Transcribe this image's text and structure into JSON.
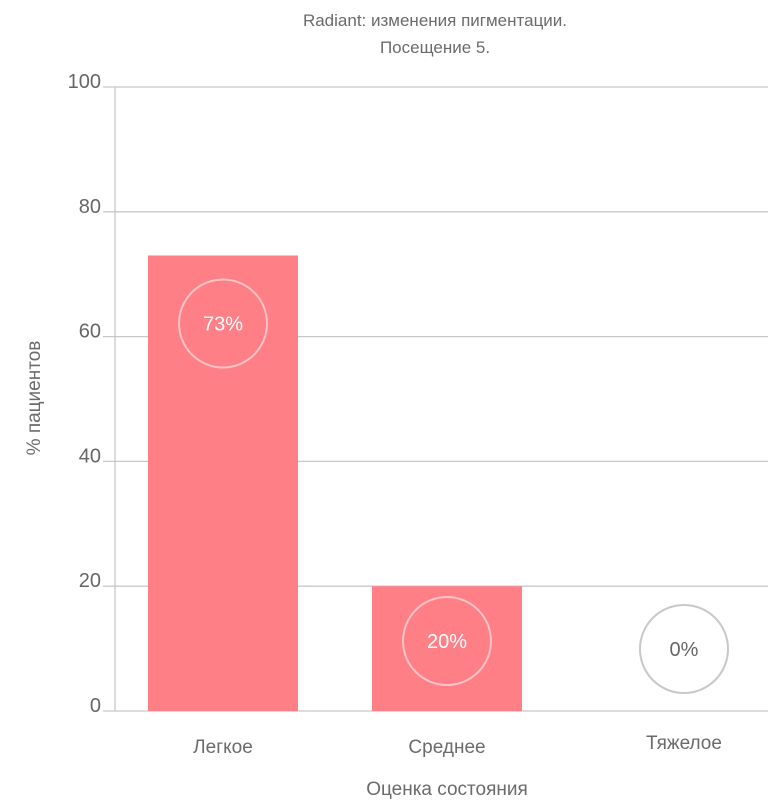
{
  "chart_data": {
    "type": "bar",
    "title": "Radiant: изменения пигментации.",
    "subtitle": "Посещение 5.",
    "xlabel": "Оценка состояния",
    "ylabel": "% пациентов",
    "categories": [
      "Легкое",
      "Среднее",
      "Тяжелое"
    ],
    "values": [
      73,
      20,
      0
    ],
    "data_labels": [
      "73%",
      "20%",
      "0%"
    ],
    "ylim": [
      0,
      100
    ],
    "yticks": [
      "0",
      "20",
      "40",
      "60",
      "80",
      "100"
    ],
    "grid": true,
    "legend": "none",
    "colors": {
      "bar": "#ff7f87",
      "grid": "#c8c8c8",
      "label_on_bar": "#ffffff",
      "label_off_bar": "#666666",
      "badge_on_bar": "#ffc2c6",
      "badge_off_bar": "#c8c8c8"
    }
  }
}
